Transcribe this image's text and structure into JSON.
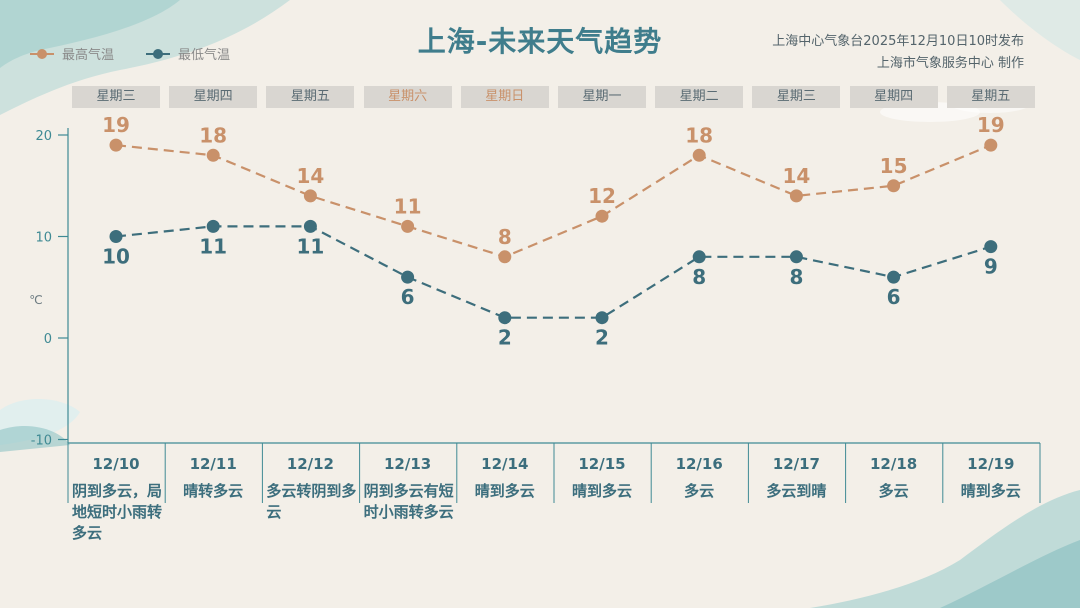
{
  "header": {
    "title": "上海-未来天气趋势",
    "publisher_line1": "上海中心气象台2025年12月10日10时发布",
    "publisher_line2": "上海市气象服务中心  制作"
  },
  "legend": {
    "high_label": "最高气温",
    "low_label": "最低气温"
  },
  "colors": {
    "high": "#c9916a",
    "low": "#3d6e7c",
    "axis": "#3f8a94"
  },
  "chart_data": {
    "type": "line",
    "title": "上海-未来天气趋势",
    "ylabel": "℃",
    "ylim": [
      -10,
      20
    ],
    "yticks": [
      20,
      10,
      0,
      -10
    ],
    "grid": false,
    "legend_position": "top-left",
    "categories": [
      "12/10",
      "12/11",
      "12/12",
      "12/13",
      "12/14",
      "12/15",
      "12/16",
      "12/17",
      "12/18",
      "12/19"
    ],
    "weekdays": [
      "星期三",
      "星期四",
      "星期五",
      "星期六",
      "星期日",
      "星期一",
      "星期二",
      "星期三",
      "星期四",
      "星期五"
    ],
    "weekend": [
      false,
      false,
      false,
      true,
      true,
      false,
      false,
      false,
      false,
      false
    ],
    "weather": [
      "阴到多云，局地短时小雨转多云",
      "晴转多云",
      "多云转阴到多云",
      "阴到多云有短时小雨转多云",
      "晴到多云",
      "晴到多云",
      "多云",
      "多云到晴",
      "多云",
      "晴到多云"
    ],
    "series": [
      {
        "name": "最高气温",
        "values": [
          19,
          18,
          14,
          11,
          8,
          12,
          18,
          14,
          15,
          19
        ]
      },
      {
        "name": "最低气温",
        "values": [
          10,
          11,
          11,
          6,
          2,
          2,
          8,
          8,
          6,
          9
        ]
      }
    ]
  }
}
